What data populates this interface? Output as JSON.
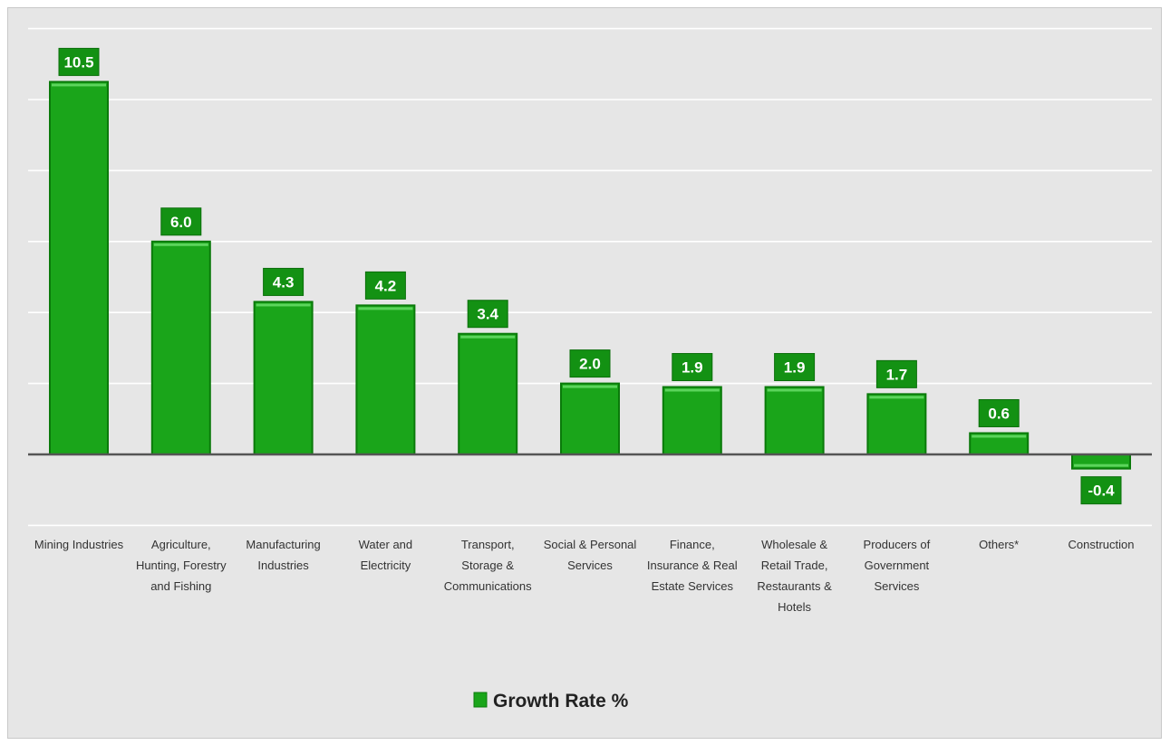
{
  "chart_data": {
    "type": "bar",
    "categories": [
      "Mining Industries",
      "Agriculture, Hunting, Forestry and Fishing",
      "Manufacturing Industries",
      "Water and Electricity",
      "Transport, Storage & Communications",
      "Social & Personal Services",
      "Finance, Insurance & Real Estate Services",
      "Wholesale & Retail Trade, Restaurants & Hotels",
      "Producers of Government Services",
      "Others*",
      "Construction"
    ],
    "category_lines": [
      [
        "Mining Industries"
      ],
      [
        "Agriculture,",
        "Hunting, Forestry",
        "and Fishing"
      ],
      [
        "Manufacturing",
        "Industries"
      ],
      [
        "Water and",
        "Electricity"
      ],
      [
        "Transport,",
        "Storage &",
        "Communications"
      ],
      [
        "Social & Personal",
        "Services"
      ],
      [
        "Finance,",
        "Insurance & Real",
        "Estate Services"
      ],
      [
        "Wholesale &",
        "Retail Trade,",
        "Restaurants &",
        "Hotels"
      ],
      [
        "Producers of",
        "Government",
        "Services"
      ],
      [
        "Others*"
      ],
      [
        "Construction"
      ]
    ],
    "series": [
      {
        "name": "Growth Rate %",
        "values": [
          10.5,
          6.0,
          4.3,
          4.2,
          3.4,
          2.0,
          1.9,
          1.9,
          1.7,
          0.6,
          -0.4
        ],
        "labels": [
          "10.5",
          "6.0",
          "4.3",
          "4.2",
          "3.4",
          "2.0",
          "1.9",
          "1.9",
          "1.7",
          "0.6",
          "-0.4"
        ]
      }
    ],
    "ylim": [
      -2,
      12
    ],
    "grid": true,
    "legend_position": "bottom-center",
    "colors": {
      "bar": "#1aa51a",
      "bar_dark": "#0a7a0a",
      "bar_highlight": "#5cd45c",
      "label_bg": "#139113",
      "grid": "#ffffff",
      "axis": "#555555",
      "background": "#e6e6e6"
    }
  }
}
